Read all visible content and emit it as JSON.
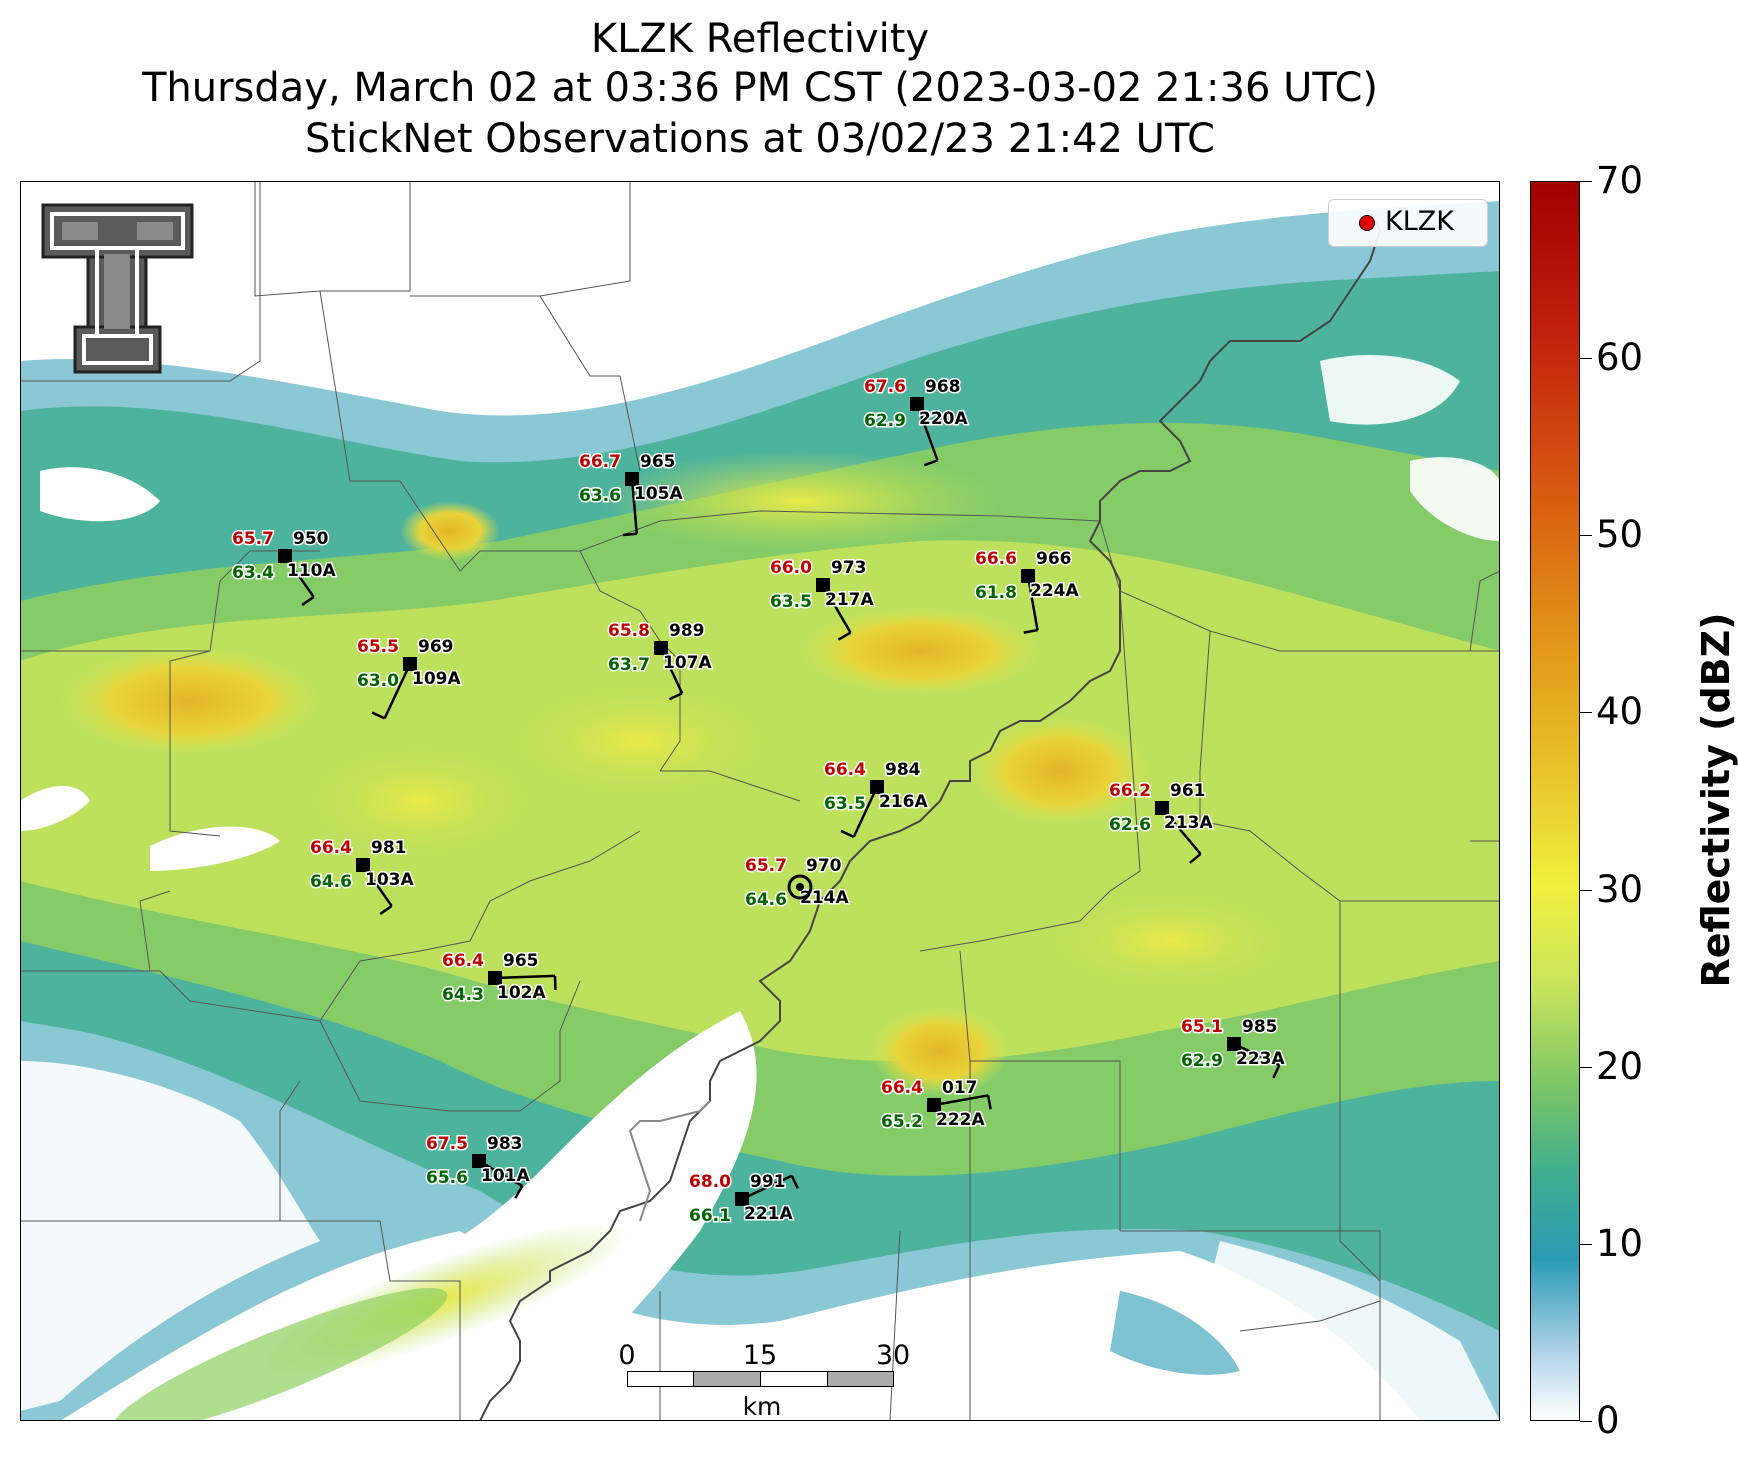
{
  "title": {
    "line1": "KLZK Reflectivity",
    "line2": "Thursday, March 02 at 03:36 PM CST (2023-03-02 21:36 UTC)",
    "line3": "StickNet Observations at 03/02/23 21:42 UTC"
  },
  "legend": {
    "label": "KLZK",
    "marker_color": "#e00000"
  },
  "colorbar": {
    "title": "Reflectivity (dBZ)",
    "ticks": [
      "70",
      "60",
      "50",
      "40",
      "30",
      "20",
      "10",
      "0"
    ],
    "range": [
      0,
      70
    ]
  },
  "scalebar": {
    "ticks": [
      "0",
      "15",
      "30"
    ],
    "unit": "km"
  },
  "colors": {
    "temperature": "#c00000",
    "dewpoint": "#006400",
    "station": "#000000"
  },
  "stations": [
    {
      "id": "220A",
      "temp": "67.6",
      "dew": "62.9",
      "pres": "968"
    },
    {
      "id": "105A",
      "temp": "66.7",
      "dew": "63.6",
      "pres": "965"
    },
    {
      "id": "110A",
      "temp": "65.7",
      "dew": "63.4",
      "pres": "950"
    },
    {
      "id": "217A",
      "temp": "66.0",
      "dew": "63.5",
      "pres": "973"
    },
    {
      "id": "224A",
      "temp": "66.6",
      "dew": "61.8",
      "pres": "966"
    },
    {
      "id": "109A",
      "temp": "65.5",
      "dew": "63.0",
      "pres": "969"
    },
    {
      "id": "107A",
      "temp": "65.8",
      "dew": "63.7",
      "pres": "989"
    },
    {
      "id": "216A",
      "temp": "66.4",
      "dew": "63.5",
      "pres": "984"
    },
    {
      "id": "213A",
      "temp": "66.2",
      "dew": "62.6",
      "pres": "961"
    },
    {
      "id": "103A",
      "temp": "66.4",
      "dew": "64.6",
      "pres": "981"
    },
    {
      "id": "214A",
      "temp": "65.7",
      "dew": "64.6",
      "pres": "970"
    },
    {
      "id": "102A",
      "temp": "66.4",
      "dew": "64.3",
      "pres": "965"
    },
    {
      "id": "223A",
      "temp": "65.1",
      "dew": "62.9",
      "pres": "985"
    },
    {
      "id": "222A",
      "temp": "66.4",
      "dew": "65.2",
      "pres": "017"
    },
    {
      "id": "101A",
      "temp": "67.5",
      "dew": "65.6",
      "pres": "983"
    },
    {
      "id": "221A",
      "temp": "68.0",
      "dew": "66.1",
      "pres": "991"
    }
  ]
}
